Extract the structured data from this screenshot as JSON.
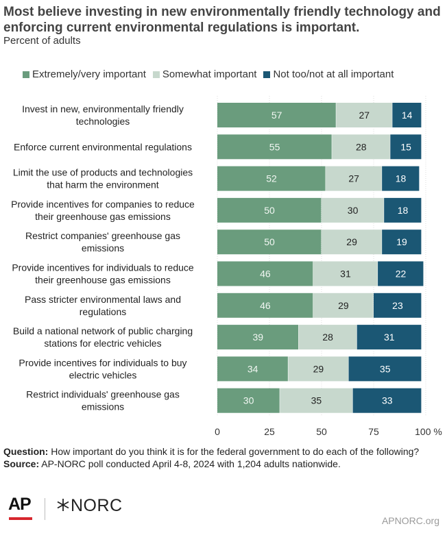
{
  "title": "Most believe investing in new environmentally friendly technology and enforcing current environmental regulations is important.",
  "subtitle": "Percent of adults",
  "chart_data": {
    "type": "bar",
    "orientation": "horizontal",
    "stacked": true,
    "categories": [
      [
        "Invest in new, environmentally friendly",
        "technologies"
      ],
      [
        "Enforce current environmental regulations"
      ],
      [
        "Limit the use of products and technologies",
        "that harm the environment"
      ],
      [
        "Provide incentives for companies to reduce",
        "their greenhouse gas emissions"
      ],
      [
        "Restrict companies' greenhouse gas",
        "emissions"
      ],
      [
        "Provide incentives for individuals to reduce",
        "their greenhouse gas emissions"
      ],
      [
        "Pass stricter environmental laws and",
        "regulations"
      ],
      [
        "Build a national network of public charging",
        "stations for electric vehicles"
      ],
      [
        "Provide incentives for individuals to buy",
        "electric vehicles"
      ],
      [
        "Restrict individuals' greenhouse gas",
        "emissions"
      ]
    ],
    "series": [
      {
        "name": "Extremely/very important",
        "color": "#6a9c7d",
        "label_color": "#f2f7f3",
        "values": [
          57,
          55,
          52,
          50,
          50,
          46,
          46,
          39,
          34,
          30
        ]
      },
      {
        "name": "Somewhat important",
        "color": "#c7d8cd",
        "label_color": "#222222",
        "values": [
          27,
          28,
          27,
          30,
          29,
          31,
          29,
          28,
          29,
          35
        ]
      },
      {
        "name": "Not too/not at all important",
        "color": "#1b5774",
        "label_color": "#ffffff",
        "values": [
          14,
          15,
          18,
          18,
          19,
          22,
          23,
          31,
          35,
          33
        ]
      }
    ],
    "xlim": [
      0,
      100
    ],
    "xticks": [
      "0",
      "25",
      "50",
      "75",
      "100"
    ],
    "x_unit": "%",
    "grid": true,
    "legend_position": "top"
  },
  "footer": {
    "question_label": "Question:",
    "question_text": "How important do you think it is for the federal government to do each of the following?",
    "source_label": "Source:",
    "source_text": "AP-NORC poll conducted April 4-8, 2024 with 1,204 adults nationwide."
  },
  "logos": {
    "ap": "AP",
    "norc": "NORC",
    "ap_color": "#d7262e"
  },
  "site": "APNORC.org"
}
